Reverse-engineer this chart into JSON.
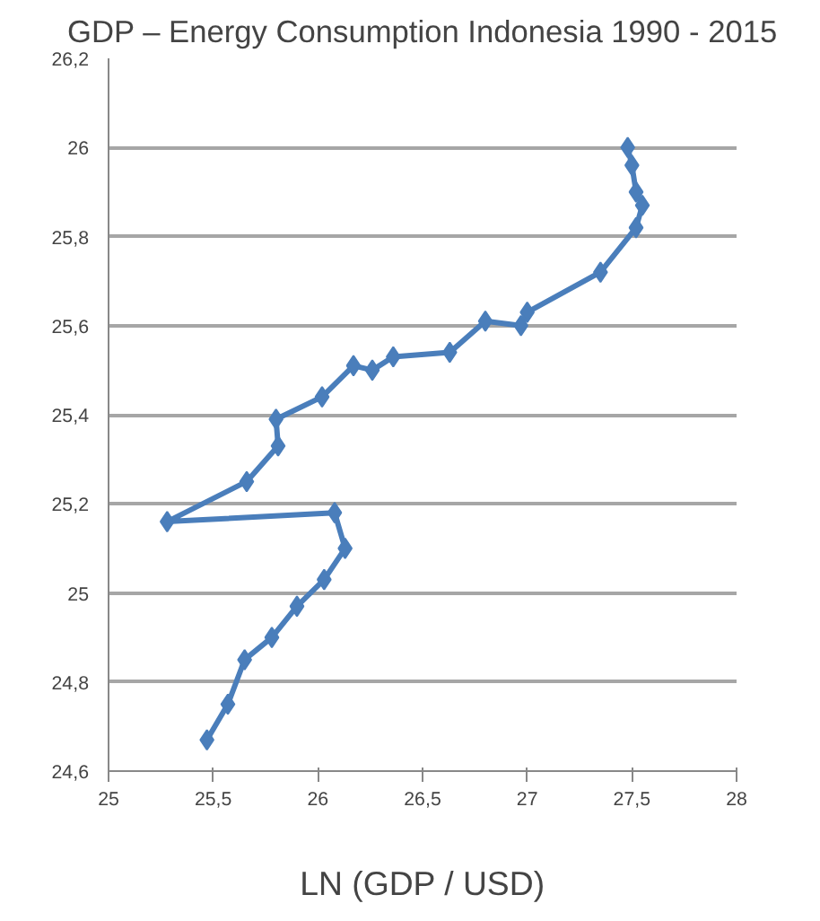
{
  "chart_data": {
    "type": "line",
    "title": "GDP – Energy Consumption Indonesia 1990 - 2015",
    "xlabel": "LN (GDP / USD)",
    "series": [
      {
        "color": "#4a7ebb",
        "x": [
          25.47,
          25.57,
          25.65,
          25.78,
          25.9,
          26.03,
          26.13,
          26.08,
          25.28,
          25.66,
          25.81,
          25.8,
          26.02,
          26.17,
          26.26,
          26.36,
          26.63,
          26.8,
          26.97,
          27.0,
          27.35,
          27.52,
          27.55,
          27.52,
          27.5,
          27.48
        ],
        "values": [
          24.67,
          24.75,
          24.85,
          24.9,
          24.97,
          25.03,
          25.1,
          25.18,
          25.16,
          25.25,
          25.33,
          25.39,
          25.44,
          25.51,
          25.5,
          25.53,
          25.54,
          25.61,
          25.6,
          25.63,
          25.72,
          25.82,
          25.87,
          25.9,
          25.96,
          26.0
        ]
      }
    ],
    "xlim": [
      25,
      28
    ],
    "ylim": [
      24.6,
      26.2
    ],
    "xticks": [
      25,
      {
        "value": 25.5,
        "label": "25,5"
      },
      26,
      {
        "value": 26.5,
        "label": "26,5"
      },
      27,
      {
        "value": 27.5,
        "label": "27,5"
      },
      28
    ],
    "yticks": [
      {
        "value": 24.6,
        "label": "24,6"
      },
      {
        "value": 24.8,
        "label": "24,8"
      },
      25,
      {
        "value": 25.2,
        "label": "25,2"
      },
      {
        "value": 25.4,
        "label": "25,4"
      },
      {
        "value": 25.6,
        "label": "25,6"
      },
      {
        "value": 25.8,
        "label": "25,8"
      },
      26,
      {
        "value": 26.2,
        "label": "26,2"
      }
    ],
    "grid": "y",
    "marker": "diamond",
    "line_style": "solid"
  }
}
